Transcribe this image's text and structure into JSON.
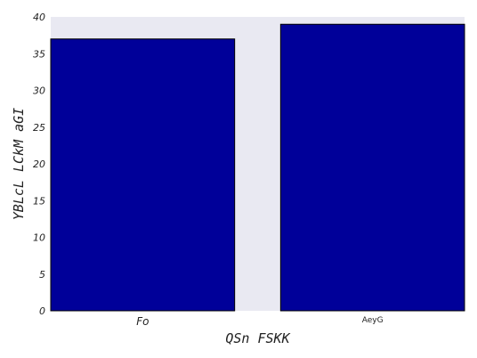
{
  "chart_data": {
    "type": "bar",
    "categories": [
      "Fo",
      "AeyG"
    ],
    "values": [
      37,
      39
    ],
    "xlabel": "QSn FSKK",
    "ylabel": "YBLcL LCkM aGI",
    "ylim": [
      0,
      40
    ],
    "yticks": [
      0,
      5,
      10,
      15,
      20,
      25,
      30,
      35,
      40
    ],
    "grid": false,
    "colors": {
      "bar_fill": "#000099",
      "bar_edge": "#000000",
      "plot_background": "#e9e9f2"
    }
  }
}
